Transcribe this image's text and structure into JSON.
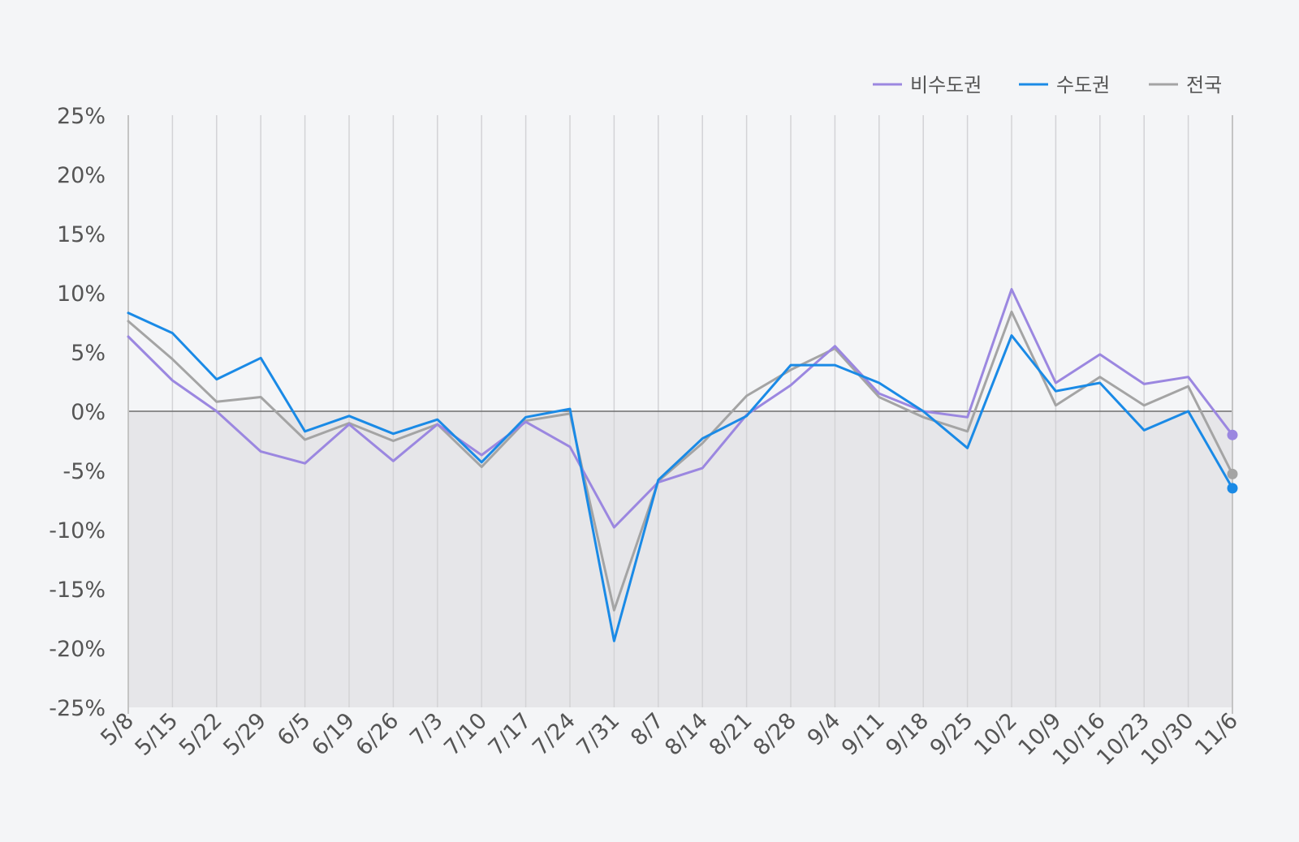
{
  "chart_data": {
    "type": "line",
    "title": "",
    "xlabel": "",
    "ylabel": "",
    "ylim": [
      -25,
      25
    ],
    "yticks": [
      25,
      20,
      15,
      10,
      5,
      0,
      -5,
      -10,
      -15,
      -20,
      -25
    ],
    "ytick_labels": [
      "25%",
      "20%",
      "15%",
      "10%",
      "5%",
      "0%",
      "-5%",
      "-10%",
      "-15%",
      "-20%",
      "-25%"
    ],
    "grid": "vertical",
    "negative_region_shaded": true,
    "legend_position": "top-right",
    "categories": [
      "5/8",
      "5/15",
      "5/22",
      "5/29",
      "6/5",
      "6/19",
      "6/26",
      "7/3",
      "7/10",
      "7/17",
      "7/24",
      "7/31",
      "8/7",
      "8/14",
      "8/21",
      "8/28",
      "9/4",
      "9/11",
      "9/18",
      "9/25",
      "10/2",
      "10/9",
      "10/16",
      "10/23",
      "10/30",
      "11/6"
    ],
    "series": [
      {
        "name": "비수도권",
        "color": "#9b87e0",
        "values": [
          6.3,
          2.6,
          0.0,
          -3.4,
          -4.4,
          -1.1,
          -4.2,
          -1.1,
          -3.7,
          -0.9,
          -3.0,
          -9.8,
          -6.0,
          -4.8,
          -0.3,
          2.2,
          5.5,
          1.5,
          0.0,
          -0.5,
          10.3,
          2.4,
          4.8,
          2.3,
          2.9,
          -2.0
        ]
      },
      {
        "name": "수도권",
        "color": "#1a8ae6",
        "values": [
          8.3,
          6.6,
          2.7,
          4.5,
          -1.7,
          -0.4,
          -1.9,
          -0.7,
          -4.3,
          -0.5,
          0.2,
          -19.4,
          -5.8,
          -2.3,
          -0.4,
          3.9,
          3.9,
          2.4,
          0.0,
          -3.1,
          6.4,
          1.7,
          2.4,
          -1.6,
          0.0,
          -6.5
        ]
      },
      {
        "name": "전국",
        "color": "#a4a4a4",
        "values": [
          7.6,
          4.4,
          0.8,
          1.2,
          -2.4,
          -1.0,
          -2.5,
          -1.1,
          -4.7,
          -0.8,
          -0.2,
          -16.8,
          -5.9,
          -2.7,
          1.3,
          3.5,
          5.3,
          1.2,
          -0.5,
          -1.7,
          8.4,
          0.5,
          2.9,
          0.5,
          2.1,
          -5.3
        ]
      }
    ]
  }
}
